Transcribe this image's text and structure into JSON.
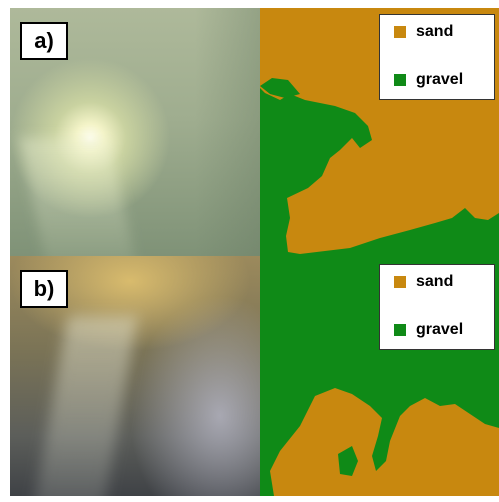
{
  "panels": [
    {
      "label": "a)"
    },
    {
      "label": "b)"
    }
  ],
  "legend": {
    "items": [
      {
        "label": "sand",
        "color": "#c8880f"
      },
      {
        "label": "gravel",
        "color": "#0f8a17"
      }
    ]
  },
  "colors": {
    "sand": "#c8880f",
    "gravel": "#0f8a17"
  }
}
